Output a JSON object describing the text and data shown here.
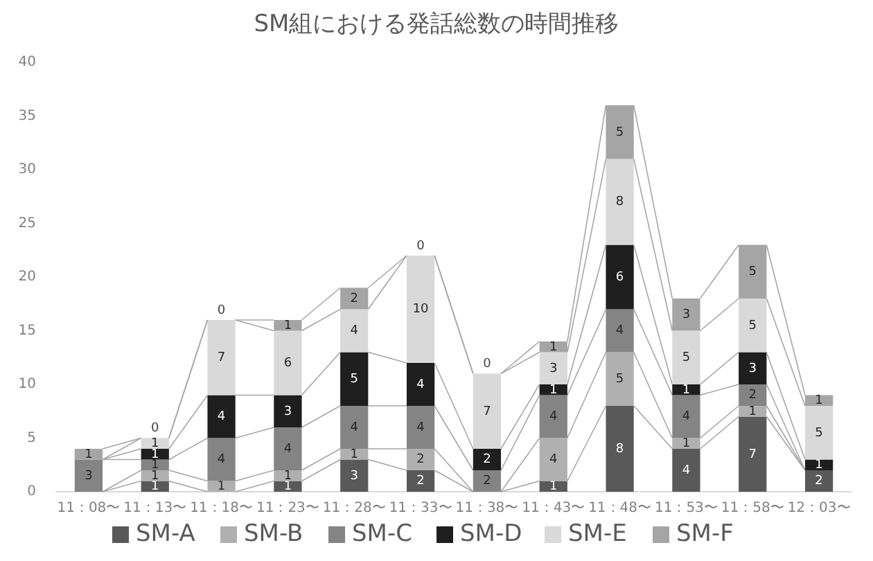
{
  "chart_data": {
    "type": "bar",
    "stacked": true,
    "title": "SM組における発話総数の時間推移",
    "categories": [
      "11：08〜",
      "11：13〜",
      "11：18〜",
      "11：23〜",
      "11：28〜",
      "11：33〜",
      "11：38〜",
      "11：43〜",
      "11：48〜",
      "11：53〜",
      "11：58〜",
      "12：03〜"
    ],
    "series": [
      {
        "name": "SM-A",
        "color": "#595959",
        "values": [
          0,
          1,
          0,
          1,
          3,
          2,
          0,
          1,
          8,
          4,
          7,
          2
        ],
        "value_labels": [
          null,
          "1",
          null,
          "1",
          "3",
          "2",
          null,
          "1",
          "8",
          "4",
          "7",
          "2"
        ]
      },
      {
        "name": "SM-B",
        "color": "#b0b0b0",
        "values": [
          0,
          1,
          1,
          1,
          1,
          2,
          0,
          4,
          5,
          1,
          1,
          0
        ],
        "value_labels": [
          null,
          "1",
          "1",
          "1",
          "1",
          "2",
          null,
          "4",
          "5",
          "1",
          "1",
          null
        ]
      },
      {
        "name": "SM-C",
        "color": "#848484",
        "values": [
          3,
          1,
          4,
          4,
          4,
          4,
          2,
          4,
          4,
          4,
          2,
          0
        ],
        "value_labels": [
          "3",
          "1",
          "4",
          "4",
          "4",
          "4",
          "2",
          "4",
          "4",
          "4",
          "2",
          null
        ]
      },
      {
        "name": "SM-D",
        "color": "#1e1e1e",
        "values": [
          0,
          1,
          4,
          3,
          5,
          4,
          2,
          1,
          6,
          1,
          3,
          1
        ],
        "value_labels": [
          null,
          "1",
          "4",
          "3",
          "5",
          "4",
          "2",
          "1",
          "6",
          "1",
          "3",
          "1"
        ]
      },
      {
        "name": "SM-E",
        "color": "#d9d9d9",
        "values": [
          0,
          1,
          7,
          6,
          4,
          10,
          7,
          3,
          8,
          5,
          5,
          5
        ],
        "value_labels": [
          null,
          "1",
          "7",
          "6",
          "4",
          "10",
          "7",
          "3",
          "8",
          "5",
          "5",
          "5"
        ]
      },
      {
        "name": "SM-F",
        "color": "#a5a5a5",
        "values": [
          1,
          0,
          0,
          1,
          2,
          0,
          0,
          1,
          5,
          3,
          5,
          1
        ],
        "value_labels": [
          "1",
          "0",
          "0",
          "1",
          "2",
          "0",
          "0",
          "1",
          "5",
          "3",
          "5",
          "1"
        ]
      }
    ],
    "ylim": [
      0,
      40
    ],
    "yticks": [
      0,
      5,
      10,
      15,
      20,
      25,
      30,
      35,
      40
    ],
    "legend": "bottom",
    "grid": false
  }
}
